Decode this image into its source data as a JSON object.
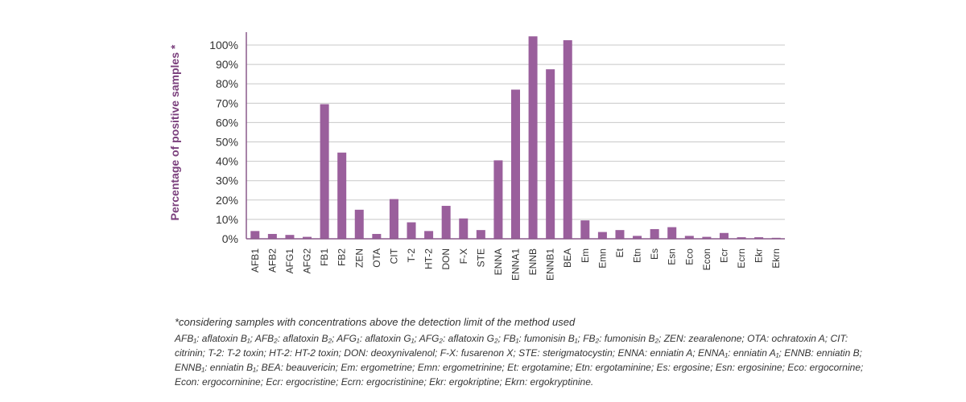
{
  "colors": {
    "bar": "#9a5f9c",
    "axis": "#8a5a8c",
    "grid": "#c8c8c8",
    "label": "#7a3f7c",
    "text": "#333333"
  },
  "chart_data": {
    "type": "bar",
    "title": "",
    "xlabel": "",
    "ylabel": "Percentage of positive samples *",
    "ylim": [
      0,
      105
    ],
    "yticks": [
      0,
      10,
      20,
      30,
      40,
      50,
      60,
      70,
      80,
      90,
      100
    ],
    "ytick_labels": [
      "0%",
      "10%",
      "20%",
      "30%",
      "40%",
      "50%",
      "60%",
      "70%",
      "80%",
      "90%",
      "100%"
    ],
    "grid": true,
    "legend": "none",
    "categories": [
      "AFB1",
      "AFB2",
      "AFG1",
      "AFG2",
      "FB1",
      "FB2",
      "ZEN",
      "OTA",
      "CIT",
      "T-2",
      "HT-2",
      "DON",
      "F-X",
      "STE",
      "ENNA",
      "ENNA1",
      "ENNB",
      "ENNB1",
      "BEA",
      "Em",
      "Emn",
      "Et",
      "Etn",
      "Es",
      "Esn",
      "Eco",
      "Econ",
      "Ecr",
      "Ecrn",
      "Ekr",
      "Ekrn"
    ],
    "values": [
      4,
      2.5,
      2,
      1,
      69.5,
      44.5,
      15,
      2.5,
      20.5,
      8.5,
      4,
      17,
      10.5,
      4.5,
      40.5,
      77,
      104.5,
      87.5,
      102.5,
      9.5,
      3.5,
      4.5,
      1.5,
      5,
      6,
      1.5,
      1,
      3,
      0.8,
      0.8,
      0.5
    ]
  },
  "notes": {
    "main": "*considering samples with concentrations above the detection limit of the method used",
    "abbreviations": "AFB₁: aflatoxin B₁; AFB₂: aflatoxin B₂; AFG₁: aflatoxin G₁; AFG₂: aflatoxin G₂; FB₁: fumonisin B₁; FB₂: fumonisin B₂; ZEN: zearalenone; OTA: ochratoxin A; CIT: citrinin; T-2: T-2 toxin; HT-2: HT-2 toxin; DON: deoxynivalenol; F-X: fusarenon X; STE: sterigmatocystin; ENNA: enniatin A; ENNA₁: enniatin A₁; ENNB: enniatin B; ENNB₁: enniatin B₁; BEA: beauvericin; Em: ergometrine; Emn: ergometrinine; Et: ergotamine; Etn: ergotaminine; Es: ergosine; Esn: ergosinine; Eco: ergocornine; Econ: ergocorninine; Ecr: ergocristine; Ecrn: ergocristinine; Ekr: ergokriptine; Ekrn: ergokryptinine."
  }
}
